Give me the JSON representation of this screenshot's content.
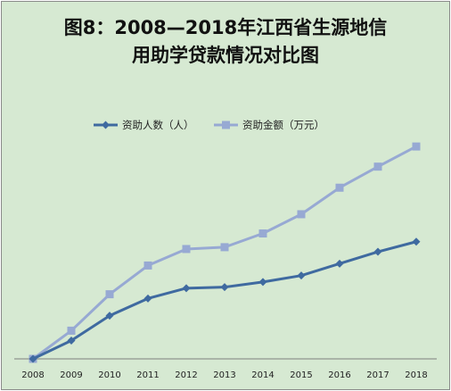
{
  "chart_data": {
    "type": "line",
    "title_line1": "图8：2008—2018年江西省生源地信",
    "title_line2": "用助学贷款情况对比图",
    "categories": [
      "2008",
      "2009",
      "2010",
      "2011",
      "2012",
      "2013",
      "2014",
      "2015",
      "2016",
      "2017",
      "2018"
    ],
    "series": [
      {
        "name": "资助人数（人）",
        "color": "#3f6aa0",
        "marker": "diamond",
        "values": [
          0,
          10,
          23.6,
          33,
          38.6,
          39.2,
          42,
          45.5,
          52,
          58.5,
          64
        ]
      },
      {
        "name": "资助金额（万元）",
        "color": "#97a9d3",
        "marker": "square",
        "values": [
          0,
          15.4,
          35.3,
          51,
          60,
          61,
          68.5,
          79,
          93.5,
          105,
          116
        ]
      }
    ],
    "legend_position": "top",
    "y_axis_visible": false,
    "ylim": [
      0,
      130
    ],
    "grid": false,
    "background": "#d6e9d2"
  }
}
